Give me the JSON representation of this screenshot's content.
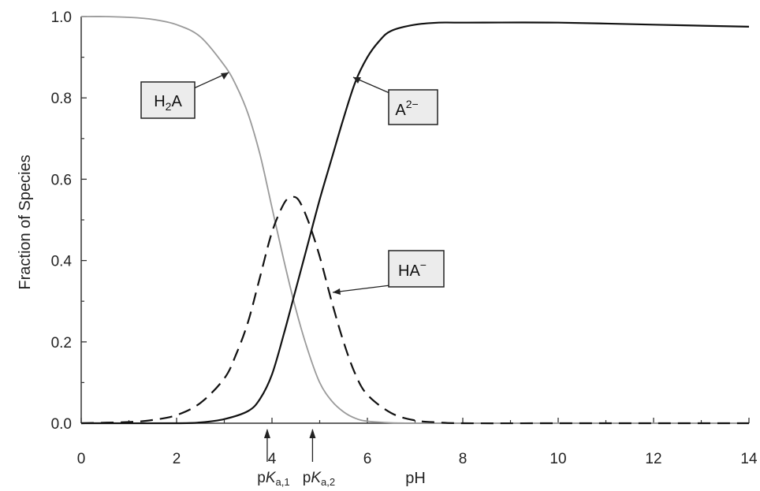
{
  "chart_data": {
    "type": "line",
    "title": "",
    "xlabel": "pH",
    "ylabel": "Fraction of Species",
    "xlim": [
      0,
      14
    ],
    "ylim": [
      0,
      1.0
    ],
    "x_ticks": [
      "0",
      "2",
      "4",
      "6",
      "8",
      "10",
      "12",
      "14"
    ],
    "y_ticks": [
      "0.0",
      "0.2",
      "0.4",
      "0.6",
      "0.8",
      "1.0"
    ],
    "grid": false,
    "pka_labels": {
      "pka1": {
        "prefix": "p",
        "italic": "K",
        "sub": "a,1",
        "value": 3.9
      },
      "pka2": {
        "prefix": "p",
        "italic": "K",
        "sub": "a,2",
        "value": 4.85
      }
    },
    "series": [
      {
        "name": "H2A",
        "label_parts": {
          "base": "H",
          "sub": "2",
          "tail": "A",
          "sup": ""
        },
        "color": "#9a9a9a",
        "style": "solid",
        "x": [
          0,
          0.5,
          1,
          1.5,
          2,
          2.5,
          3,
          3.25,
          3.5,
          3.75,
          4,
          4.25,
          4.5,
          4.75,
          5,
          5.25,
          5.5,
          5.75,
          6,
          6.5,
          7,
          8,
          10,
          12,
          14
        ],
        "y": [
          1.0,
          1.0,
          0.998,
          0.993,
          0.98,
          0.95,
          0.88,
          0.83,
          0.76,
          0.66,
          0.53,
          0.4,
          0.28,
          0.18,
          0.1,
          0.055,
          0.028,
          0.012,
          0.005,
          0.001,
          0,
          0,
          0,
          0,
          0
        ]
      },
      {
        "name": "HA-",
        "label_parts": {
          "base": "HA",
          "sub": "",
          "tail": "",
          "sup": "−"
        },
        "color": "#111111",
        "style": "dashed",
        "x": [
          0,
          1,
          1.5,
          2,
          2.5,
          3,
          3.25,
          3.5,
          3.75,
          4,
          4.25,
          4.4,
          4.55,
          4.75,
          5,
          5.25,
          5.5,
          5.75,
          6,
          6.5,
          7,
          7.5,
          8,
          10,
          12,
          14
        ],
        "y": [
          0,
          0.003,
          0.008,
          0.02,
          0.05,
          0.11,
          0.17,
          0.25,
          0.36,
          0.47,
          0.54,
          0.555,
          0.55,
          0.5,
          0.41,
          0.3,
          0.2,
          0.12,
          0.07,
          0.025,
          0.007,
          0.002,
          0,
          0,
          0,
          0
        ]
      },
      {
        "name": "A2-",
        "label_parts": {
          "base": "A",
          "sub": "",
          "tail": "",
          "sup": "2−"
        },
        "color": "#111111",
        "style": "solid",
        "x": [
          0,
          2,
          2.5,
          3,
          3.5,
          3.75,
          4,
          4.25,
          4.5,
          4.75,
          5,
          5.25,
          5.5,
          5.75,
          6,
          6.25,
          6.5,
          7,
          7.5,
          8,
          10,
          12,
          14
        ],
        "y": [
          0,
          0,
          0.002,
          0.01,
          0.03,
          0.06,
          0.12,
          0.22,
          0.33,
          0.44,
          0.55,
          0.65,
          0.75,
          0.84,
          0.9,
          0.94,
          0.965,
          0.98,
          0.985,
          0.985,
          0.985,
          0.98,
          0.975
        ]
      }
    ]
  }
}
